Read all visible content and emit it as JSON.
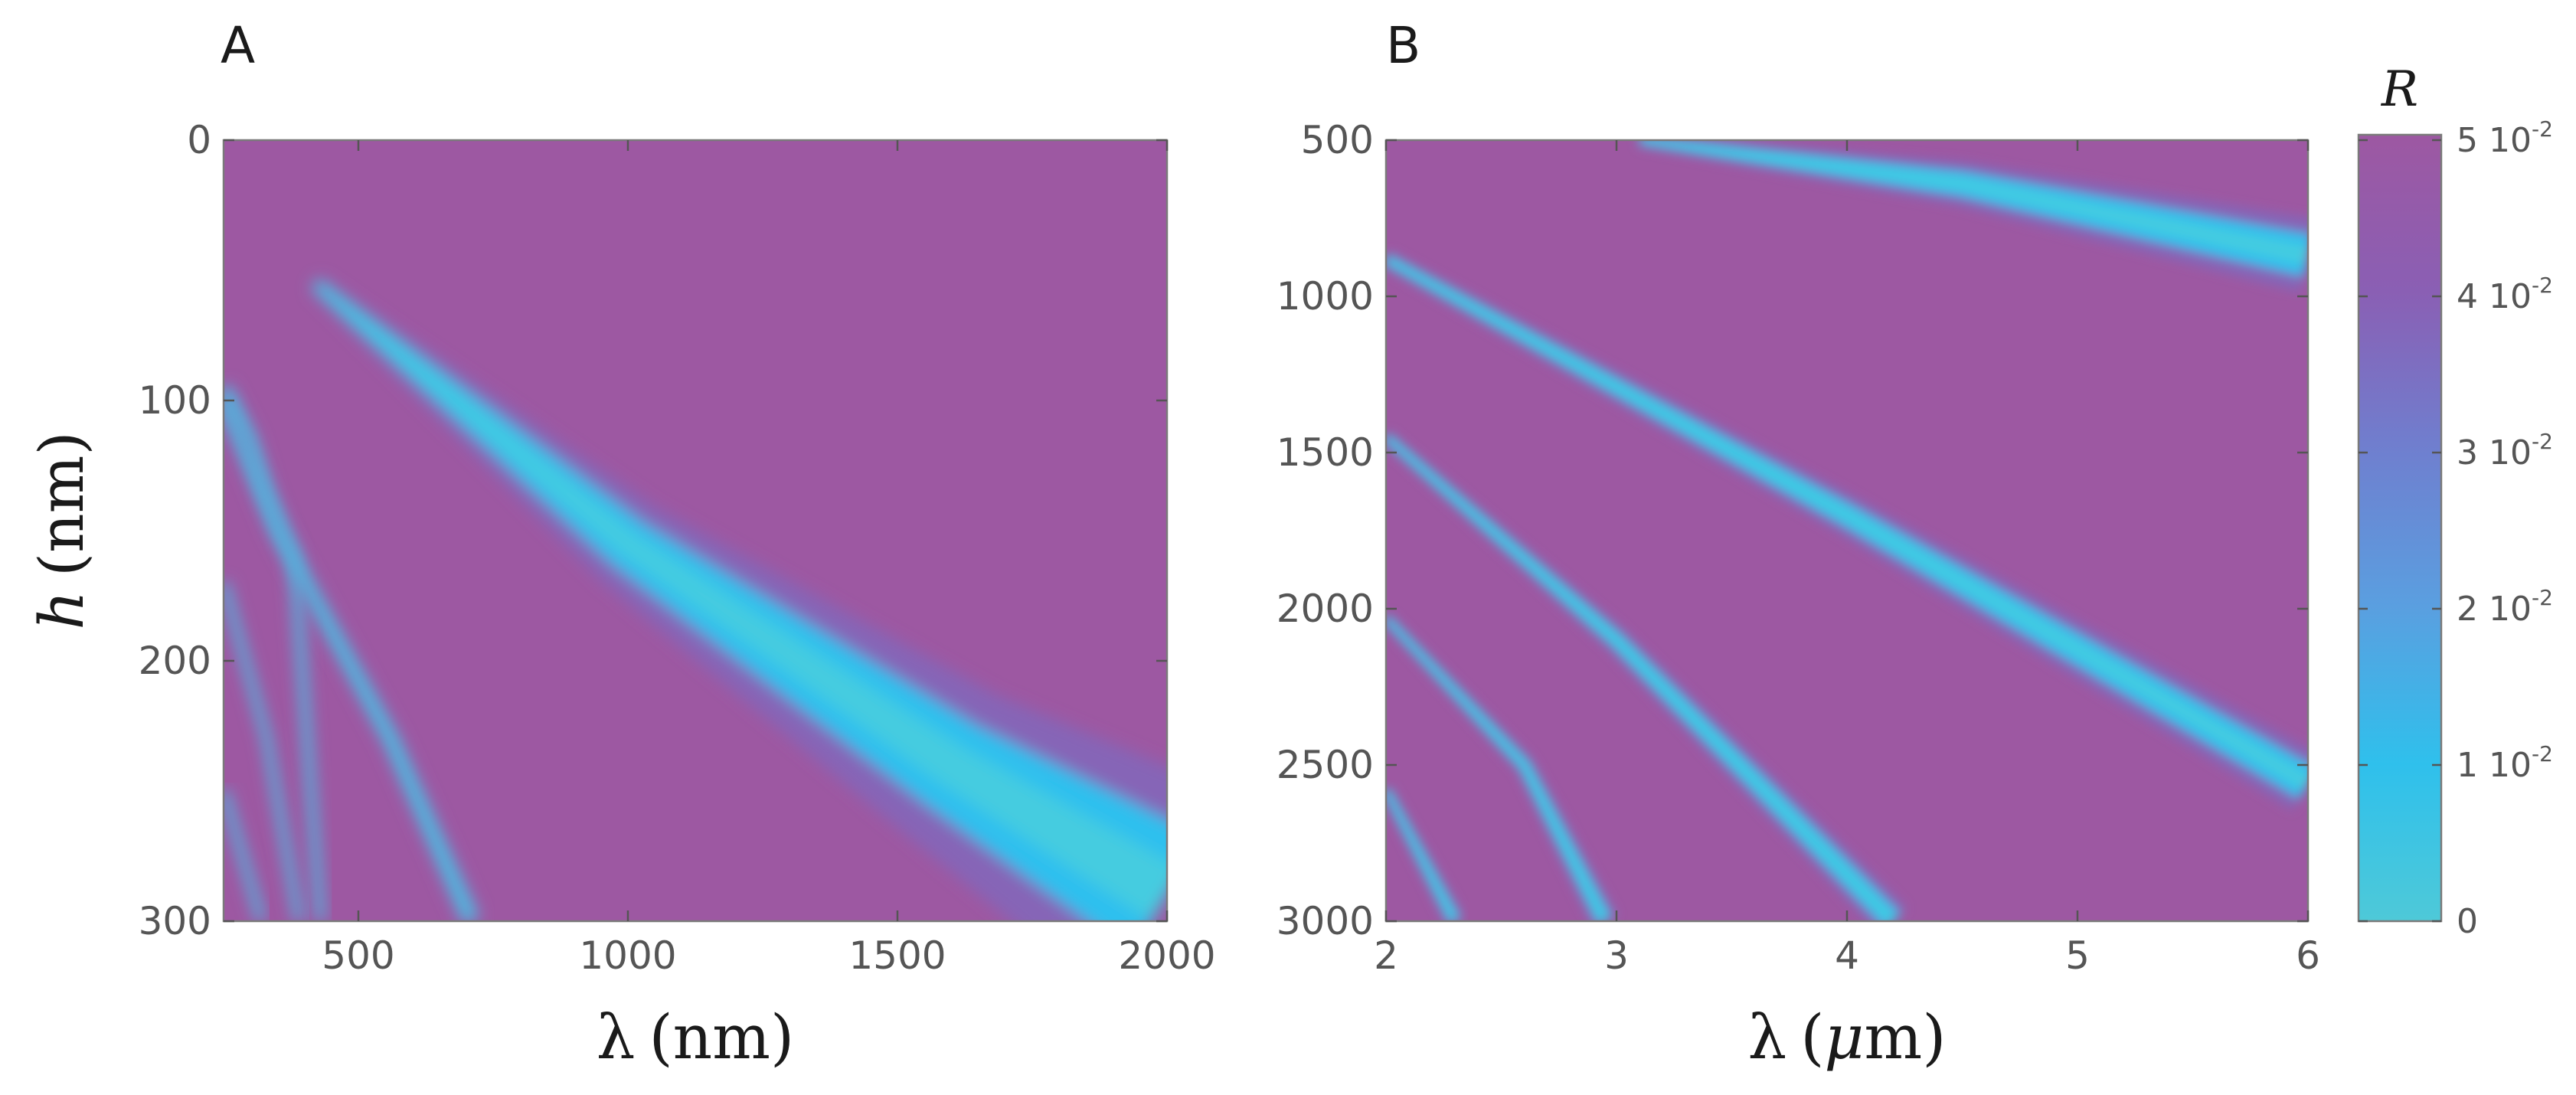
{
  "chart_data": [
    {
      "type": "heatmap",
      "panel_label": "A",
      "xlabel_symbol": "λ",
      "xlabel_unit": "(nm)",
      "ylabel_symbol": "h",
      "ylabel_unit": "(nm)",
      "xlim": [
        250,
        2000
      ],
      "ylim": [
        0,
        300
      ],
      "y_inverted": true,
      "x_ticks": [
        500,
        1000,
        1500,
        2000
      ],
      "x_tick_labels": [
        "500",
        "1000",
        "1500",
        "2000"
      ],
      "y_ticks": [
        0,
        100,
        200,
        300
      ],
      "y_tick_labels": [
        "0",
        "100",
        "200",
        "300"
      ],
      "grid": false,
      "bands": [
        {
          "points": [
            [
              420,
              55
            ],
            [
              1000,
              155
            ],
            [
              1600,
              240
            ],
            [
              2000,
              290
            ]
          ],
          "width_start": 3,
          "width_end": 42
        },
        {
          "points": [
            [
              250,
              100
            ],
            [
              350,
              150
            ],
            [
              560,
              230
            ],
            [
              710,
              300
            ]
          ],
          "width_start": 3,
          "width_end": 4
        },
        {
          "points": [
            [
              250,
              95
            ],
            [
              300,
              115
            ],
            [
              330,
              135
            ],
            [
              380,
              160
            ],
            [
              430,
              300
            ]
          ],
          "width_start": 3,
          "width_end": 2
        },
        {
          "points": [
            [
              250,
              170
            ],
            [
              330,
              230
            ],
            [
              390,
              300
            ]
          ],
          "width_start": 2,
          "width_end": 2
        },
        {
          "points": [
            [
              250,
              250
            ],
            [
              320,
              300
            ]
          ],
          "width_start": 2,
          "width_end": 2
        }
      ]
    },
    {
      "type": "heatmap",
      "panel_label": "B",
      "xlabel_symbol": "λ",
      "xlabel_unit_open": "(",
      "xlabel_unit_mu": "μ",
      "xlabel_unit_close": "m)",
      "xlim": [
        2,
        6
      ],
      "ylim": [
        500,
        3000
      ],
      "y_inverted": true,
      "x_ticks": [
        2,
        3,
        4,
        5,
        6
      ],
      "x_tick_labels": [
        "2",
        "3",
        "4",
        "5",
        "6"
      ],
      "y_ticks": [
        500,
        1000,
        1500,
        2000,
        2500,
        3000
      ],
      "y_tick_labels": [
        "500",
        "1000",
        "1500",
        "2000",
        "2500",
        "3000"
      ],
      "grid": false,
      "bands": [
        {
          "points": [
            [
              3.1,
              500
            ],
            [
              4.5,
              640
            ],
            [
              6.0,
              870
            ]
          ],
          "width_start": 20,
          "width_end": 110
        },
        {
          "points": [
            [
              2.0,
              880
            ],
            [
              4.0,
              1700
            ],
            [
              6.0,
              2560
            ]
          ],
          "width_start": 25,
          "width_end": 90
        },
        {
          "points": [
            [
              2.0,
              1450
            ],
            [
              3.0,
              2100
            ],
            [
              4.2,
              3000
            ]
          ],
          "width_start": 20,
          "width_end": 55
        },
        {
          "points": [
            [
              2.0,
              2030
            ],
            [
              2.6,
              2500
            ],
            [
              2.95,
              3000
            ]
          ],
          "width_start": 18,
          "width_end": 40
        },
        {
          "points": [
            [
              2.0,
              2580
            ],
            [
              2.3,
              3000
            ]
          ],
          "width_start": 18,
          "width_end": 30
        }
      ]
    }
  ],
  "colorbar": {
    "title": "R",
    "vmin": 0,
    "vmax": 0.05,
    "tick_labels": [
      {
        "value": 0,
        "main": "0",
        "sup": ""
      },
      {
        "value": 0.01,
        "main": "1 10",
        "sup": "-2"
      },
      {
        "value": 0.02,
        "main": "2 10",
        "sup": "-2"
      },
      {
        "value": 0.03,
        "main": "3 10",
        "sup": "-2"
      },
      {
        "value": 0.04,
        "main": "4 10",
        "sup": "-2"
      },
      {
        "value": 0.05,
        "main": "5 10",
        "sup": "-2"
      }
    ],
    "colors": [
      "#4ec9d8",
      "#2fc0ec",
      "#5a9fe0",
      "#6f7fcf",
      "#8a5fb4",
      "#9d58a2"
    ]
  },
  "colors": {
    "background": "#9d58a2",
    "band_core": "#45cce0",
    "band_mid": "#2ec0ee",
    "band_edge": "#7f68bd"
  }
}
